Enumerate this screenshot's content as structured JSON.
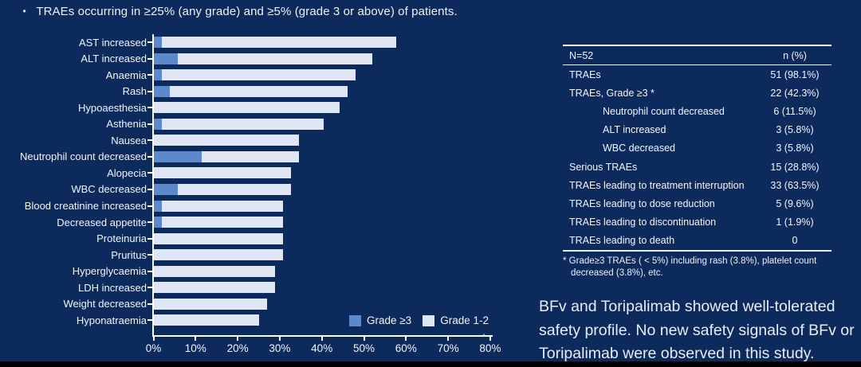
{
  "colors": {
    "background": "#0d2a5c",
    "grade3": "#5b89cb",
    "grade12": "#dde6f2",
    "axis": "#ffffff",
    "bottom_strip": "#000000"
  },
  "header": {
    "bullet_glyph": "•",
    "bullet": "TRAEs occurring in ≥25% (any grade) and ≥5% (grade 3 or above) of patients."
  },
  "chart_data": {
    "type": "bar",
    "orientation": "horizontal",
    "stacked": true,
    "grid": false,
    "xlim": [
      0,
      80
    ],
    "x_ticks": [
      "0%",
      "10%",
      "20%",
      "30%",
      "40%",
      "50%",
      "60%",
      "70%",
      "80%"
    ],
    "x_tick_values": [
      0,
      10,
      20,
      30,
      40,
      50,
      60,
      70,
      80
    ],
    "legend_position": "bottom-right",
    "axis_end_mark": ".",
    "categories": [
      "AST increased",
      "ALT increased",
      "Anaemia",
      "Rash",
      "Hypoaesthesia",
      "Asthenia",
      "Nausea",
      "Neutrophil count decreased",
      "Alopecia",
      "WBC decreased",
      "Blood creatinine increased",
      "Decreased appetite",
      "Proteinuria",
      "Pruritus",
      "Hyperglycaemia",
      "LDH increased",
      "Weight decreased",
      "Hyponatraemia"
    ],
    "series": [
      {
        "name": "Grade ≥3",
        "color": "#5b89cb",
        "values": [
          1.9,
          5.8,
          1.9,
          3.8,
          0,
          1.9,
          0,
          11.5,
          0,
          5.8,
          1.9,
          1.9,
          0,
          0,
          0,
          0,
          0,
          0
        ]
      },
      {
        "name": "Grade 1-2",
        "color": "#dde6f2",
        "values": [
          55.8,
          46.2,
          46.2,
          42.3,
          44.2,
          38.5,
          34.6,
          23.1,
          32.7,
          26.9,
          28.8,
          28.8,
          30.8,
          30.8,
          28.8,
          28.8,
          26.9,
          25.0
        ]
      }
    ],
    "totals_any_grade_pct": [
      57.7,
      52.0,
      48.1,
      46.1,
      44.2,
      40.4,
      34.6,
      34.6,
      32.7,
      32.7,
      30.7,
      30.7,
      30.8,
      30.8,
      28.8,
      28.8,
      26.9,
      25.0
    ]
  },
  "table": {
    "header": {
      "left": "N=52",
      "right": "n (%)"
    },
    "rows": [
      {
        "label": "TRAEs",
        "value": "51 (98.1%)",
        "indent": false
      },
      {
        "label": "TRAEs, Grade ≥3 *",
        "value": "22 (42.3%)",
        "indent": false
      },
      {
        "label": "Neutrophil count decreased",
        "value": "6 (11.5%)",
        "indent": true
      },
      {
        "label": "ALT increased",
        "value": "3 (5.8%)",
        "indent": true
      },
      {
        "label": "WBC decreased",
        "value": "3 (5.8%)",
        "indent": true
      },
      {
        "label": "Serious TRAEs",
        "value": "15 (28.8%)",
        "indent": false
      },
      {
        "label": "TRAEs leading to treatment interruption",
        "value": "33 (63.5%)",
        "indent": false
      },
      {
        "label": "TRAEs leading to dose reduction",
        "value": "5 (9.6%)",
        "indent": false
      },
      {
        "label": "TRAEs leading to discontinuation",
        "value": "1 (1.9%)",
        "indent": false
      },
      {
        "label": "TRAEs leading to death",
        "value": "0",
        "indent": false
      }
    ],
    "footnote": "* Grade≥3 TRAEs ( < 5%) including rash (3.8%), platelet count decreased (3.8%), etc."
  },
  "summary": "BFv and Toripalimab showed well-tolerated safety profile. No new safety signals of BFv or Toripalimab were observed in this study."
}
